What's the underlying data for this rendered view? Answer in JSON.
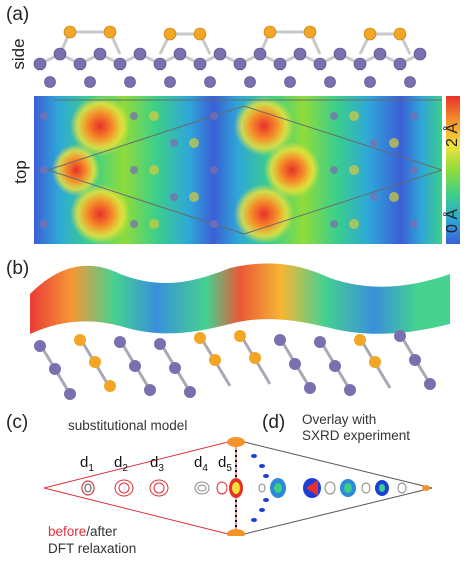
{
  "panels": {
    "a": {
      "label": "(a)",
      "side_label": "side",
      "top_label": "top"
    },
    "b": {
      "label": "(b)"
    },
    "c": {
      "label": "(c)",
      "model_title": "substitutional model",
      "d_labels": [
        {
          "base": "d",
          "sub": "1"
        },
        {
          "base": "d",
          "sub": "2"
        },
        {
          "base": "d",
          "sub": "3"
        },
        {
          "base": "d",
          "sub": "4"
        },
        {
          "base": "d",
          "sub": "5"
        }
      ],
      "legend_before": "before",
      "legend_after": "/after",
      "legend_line2": "DFT relaxation"
    },
    "d": {
      "label": "(d)",
      "title_line1": "Overlay with",
      "title_line2": "SXRD experiment"
    }
  },
  "colorbar": {
    "max_label": "2 Å",
    "min_label": "0 Å"
  },
  "colors": {
    "gold_atom": "#f2a623",
    "purple_atom": "#7c6fb0",
    "relax_red": "#e0303a"
  }
}
